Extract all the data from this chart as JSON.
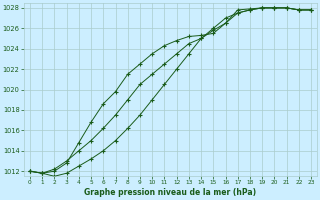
{
  "title": "Graphe pression niveau de la mer (hPa)",
  "bg_color": "#cceeff",
  "grid_color": "#aacccc",
  "line_color": "#1a5c1a",
  "xlim": [
    -0.5,
    23.5
  ],
  "ylim": [
    1011.5,
    1028.5
  ],
  "yticks": [
    1012,
    1014,
    1016,
    1018,
    1020,
    1022,
    1024,
    1026,
    1028
  ],
  "xticks": [
    0,
    1,
    2,
    3,
    4,
    5,
    6,
    7,
    8,
    9,
    10,
    11,
    12,
    13,
    14,
    15,
    16,
    17,
    18,
    19,
    20,
    21,
    22,
    23
  ],
  "line1": {
    "x": [
      0,
      1,
      2,
      3,
      4,
      5,
      6,
      7,
      8,
      9,
      10,
      11,
      12,
      13,
      14,
      15,
      16,
      17,
      18,
      19,
      20,
      21,
      22,
      23
    ],
    "y": [
      1012.0,
      1011.8,
      1012.0,
      1012.8,
      1014.8,
      1016.8,
      1018.6,
      1019.8,
      1021.5,
      1022.5,
      1023.5,
      1024.3,
      1024.8,
      1025.2,
      1025.3,
      1025.5,
      1026.5,
      1027.8,
      1027.9,
      1028.0,
      1028.0,
      1028.0,
      1027.8,
      1027.8
    ]
  },
  "line2": {
    "x": [
      0,
      1,
      2,
      3,
      4,
      5,
      6,
      7,
      8,
      9,
      10,
      11,
      12,
      13,
      14,
      15,
      16,
      17,
      18,
      19,
      20,
      21,
      22,
      23
    ],
    "y": [
      1012.0,
      1011.8,
      1012.2,
      1013.0,
      1014.0,
      1015.0,
      1016.2,
      1017.5,
      1019.0,
      1020.5,
      1021.5,
      1022.5,
      1023.5,
      1024.5,
      1025.0,
      1025.8,
      1026.5,
      1027.5,
      1027.8,
      1028.0,
      1028.0,
      1028.0,
      1027.8,
      1027.8
    ]
  },
  "line3": {
    "x": [
      0,
      1,
      2,
      3,
      4,
      5,
      6,
      7,
      8,
      9,
      10,
      11,
      12,
      13,
      14,
      15,
      16,
      17,
      18,
      19,
      20,
      21,
      22,
      23
    ],
    "y": [
      1012.0,
      1011.8,
      1011.5,
      1011.8,
      1012.5,
      1013.2,
      1014.0,
      1015.0,
      1016.2,
      1017.5,
      1019.0,
      1020.5,
      1022.0,
      1023.5,
      1025.0,
      1026.0,
      1027.0,
      1027.5,
      1027.8,
      1028.0,
      1028.0,
      1028.0,
      1027.8,
      1027.8
    ]
  }
}
